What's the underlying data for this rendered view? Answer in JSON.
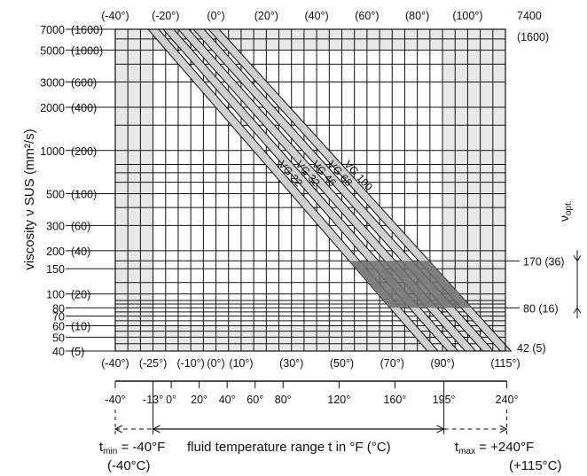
{
  "chart_data": {
    "type": "line",
    "y_axis_label": "viscosity ν SUS (mm²/s)",
    "y_ticks": [
      {
        "sus": 7000,
        "mm2s": 1600
      },
      {
        "sus": 5000,
        "mm2s": 1000
      },
      {
        "sus": 3000,
        "mm2s": 600
      },
      {
        "sus": 2000,
        "mm2s": 400
      },
      {
        "sus": 1000,
        "mm2s": 200
      },
      {
        "sus": 500,
        "mm2s": 100
      },
      {
        "sus": 300,
        "mm2s": 60
      },
      {
        "sus": 200,
        "mm2s": 40
      },
      {
        "sus": 150,
        "mm2s": null
      },
      {
        "sus": 100,
        "mm2s": 20
      },
      {
        "sus": 80,
        "mm2s": null
      },
      {
        "sus": 70,
        "mm2s": null
      },
      {
        "sus": 60,
        "mm2s": 10
      },
      {
        "sus": 50,
        "mm2s": null
      },
      {
        "sus": 40,
        "mm2s": 5
      }
    ],
    "top_celsius_labels": [
      "(-40°)",
      "(-20°)",
      "(0°)",
      "(20°)",
      "(40°)",
      "(60°)",
      "(80°)",
      "(100°)"
    ],
    "top_celsius_values": [
      -40,
      -20,
      0,
      20,
      40,
      60,
      80,
      100
    ],
    "bottom_celsius_labels": [
      "(-40°)",
      "(-25°)",
      "(-10°)",
      "(0°)",
      "(10°)",
      "(30°)",
      "(50°)",
      "(70°)",
      "(90°)",
      "(115°)"
    ],
    "bottom_celsius_values": [
      -40,
      -25,
      -10,
      0,
      10,
      30,
      50,
      70,
      90,
      115
    ],
    "fahrenheit_labels": [
      "-40°",
      "-13°",
      "0°",
      "20°",
      "40°",
      "60°",
      "80°",
      "120°",
      "160°",
      "195°",
      "240°"
    ],
    "fahrenheit_values": [
      -40,
      -13,
      0,
      20,
      40,
      60,
      80,
      120,
      160,
      195,
      240
    ],
    "right_labels": {
      "top_sus": "7400",
      "top_mm2s": "(1600)",
      "upper": "170 (36)",
      "lower": "80 (16)",
      "bottom": "42 (5)",
      "v_opt_symbol": "ν",
      "v_opt_sub": "opt."
    },
    "series": [
      {
        "name": "VG 22",
        "points": [
          [
            -27,
            7000
          ],
          [
            84,
            40
          ]
        ]
      },
      {
        "name": "VG 32",
        "points": [
          [
            -21,
            7000
          ],
          [
            92,
            40
          ]
        ]
      },
      {
        "name": "VG 46",
        "points": [
          [
            -15,
            7000
          ],
          [
            99,
            40
          ]
        ]
      },
      {
        "name": "VG 68",
        "points": [
          [
            -9,
            7000
          ],
          [
            106,
            40
          ]
        ]
      },
      {
        "name": "VG 100",
        "points": [
          [
            -3,
            7000
          ],
          [
            113,
            40
          ]
        ]
      }
    ],
    "optimal_band_sus": [
      80,
      170
    ],
    "xlim_celsius": [
      -40,
      115
    ],
    "ylim_sus": [
      40,
      7000
    ],
    "y_scale": "log",
    "range_text": {
      "t_min": "t",
      "t_min_sub": "min",
      "t_min_value": "= -40°F",
      "t_min_c": "(-40°C)",
      "middle": "fluid temperature range t in °F (°C)",
      "t_max": "t",
      "t_max_sub": "max",
      "t_max_value": "= +240°F",
      "t_max_c": "(+115°C)"
    }
  }
}
